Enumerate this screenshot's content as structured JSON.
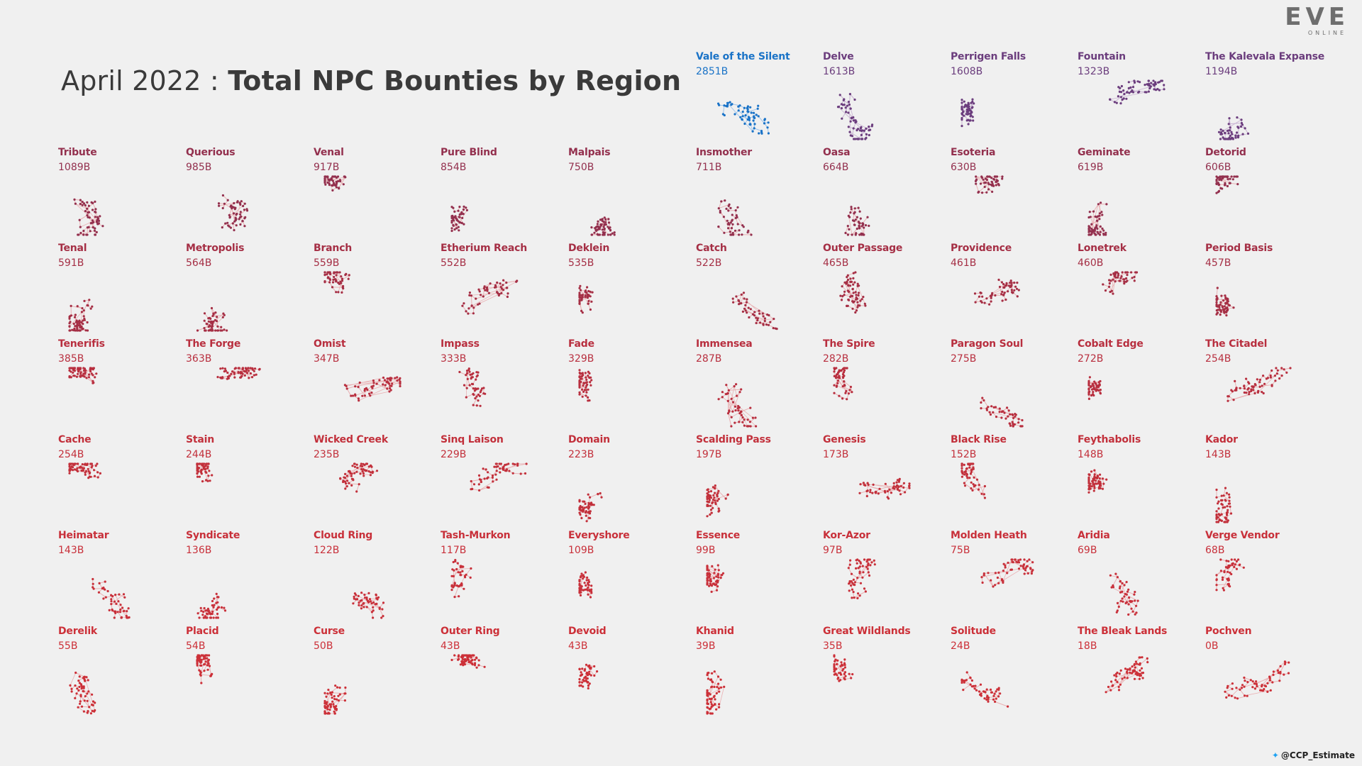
{
  "title": {
    "light": "April 2022 : ",
    "bold": "Total NPC Bounties by Region"
  },
  "logo": {
    "main": "EVE",
    "sub": "ONLINE"
  },
  "credit": "@CCP_Estimate",
  "colors": {
    "highlight": "#1a73c7",
    "purple": "#6b3d7d",
    "maroon": "#93304e",
    "red": "#c8303a",
    "edge": "#e8aaaa"
  },
  "chart_data": {
    "type": "small-multiples",
    "title": "April 2022 : Total NPC Bounties by Region",
    "unit": "B",
    "regions": [
      {
        "name": "Vale of the Silent",
        "value": 2851,
        "label": "2851B",
        "color": "#1a73c7"
      },
      {
        "name": "Delve",
        "value": 1613,
        "label": "1613B",
        "color": "#6b3d7d"
      },
      {
        "name": "Perrigen Falls",
        "value": 1608,
        "label": "1608B",
        "color": "#6b3d7d"
      },
      {
        "name": "Fountain",
        "value": 1323,
        "label": "1323B",
        "color": "#6b3d7d"
      },
      {
        "name": "The Kalevala Expanse",
        "value": 1194,
        "label": "1194B",
        "color": "#6b3d7d"
      },
      {
        "name": "Tribute",
        "value": 1089,
        "label": "1089B",
        "color": "#93304e"
      },
      {
        "name": "Querious",
        "value": 985,
        "label": "985B",
        "color": "#93304e"
      },
      {
        "name": "Venal",
        "value": 917,
        "label": "917B",
        "color": "#93304e"
      },
      {
        "name": "Pure Blind",
        "value": 854,
        "label": "854B",
        "color": "#93304e"
      },
      {
        "name": "Malpais",
        "value": 750,
        "label": "750B",
        "color": "#93304e"
      },
      {
        "name": "Insmother",
        "value": 711,
        "label": "711B",
        "color": "#93304e"
      },
      {
        "name": "Oasa",
        "value": 664,
        "label": "664B",
        "color": "#93304e"
      },
      {
        "name": "Esoteria",
        "value": 630,
        "label": "630B",
        "color": "#93304e"
      },
      {
        "name": "Geminate",
        "value": 619,
        "label": "619B",
        "color": "#93304e"
      },
      {
        "name": "Detorid",
        "value": 606,
        "label": "606B",
        "color": "#93304e"
      },
      {
        "name": "Tenal",
        "value": 591,
        "label": "591B",
        "color": "#a52f45"
      },
      {
        "name": "Metropolis",
        "value": 564,
        "label": "564B",
        "color": "#a52f45"
      },
      {
        "name": "Branch",
        "value": 559,
        "label": "559B",
        "color": "#a52f45"
      },
      {
        "name": "Etherium Reach",
        "value": 552,
        "label": "552B",
        "color": "#a52f45"
      },
      {
        "name": "Deklein",
        "value": 535,
        "label": "535B",
        "color": "#a52f45"
      },
      {
        "name": "Catch",
        "value": 522,
        "label": "522B",
        "color": "#a52f45"
      },
      {
        "name": "Outer Passage",
        "value": 465,
        "label": "465B",
        "color": "#a52f45"
      },
      {
        "name": "Providence",
        "value": 461,
        "label": "461B",
        "color": "#a52f45"
      },
      {
        "name": "Lonetrek",
        "value": 460,
        "label": "460B",
        "color": "#a52f45"
      },
      {
        "name": "Period Basis",
        "value": 457,
        "label": "457B",
        "color": "#a52f45"
      },
      {
        "name": "Tenerifis",
        "value": 385,
        "label": "385B",
        "color": "#b82f3f"
      },
      {
        "name": "The Forge",
        "value": 363,
        "label": "363B",
        "color": "#b82f3f"
      },
      {
        "name": "Omist",
        "value": 347,
        "label": "347B",
        "color": "#b82f3f"
      },
      {
        "name": "Impass",
        "value": 333,
        "label": "333B",
        "color": "#b82f3f"
      },
      {
        "name": "Fade",
        "value": 329,
        "label": "329B",
        "color": "#b82f3f"
      },
      {
        "name": "Immensea",
        "value": 287,
        "label": "287B",
        "color": "#b82f3f"
      },
      {
        "name": "The Spire",
        "value": 282,
        "label": "282B",
        "color": "#b82f3f"
      },
      {
        "name": "Paragon Soul",
        "value": 275,
        "label": "275B",
        "color": "#b82f3f"
      },
      {
        "name": "Cobalt Edge",
        "value": 272,
        "label": "272B",
        "color": "#b82f3f"
      },
      {
        "name": "The Citadel",
        "value": 254,
        "label": "254B",
        "color": "#b82f3f"
      },
      {
        "name": "Cache",
        "value": 254,
        "label": "254B",
        "color": "#c2303b"
      },
      {
        "name": "Stain",
        "value": 244,
        "label": "244B",
        "color": "#c2303b"
      },
      {
        "name": "Wicked Creek",
        "value": 235,
        "label": "235B",
        "color": "#c2303b"
      },
      {
        "name": "Sinq Laison",
        "value": 229,
        "label": "229B",
        "color": "#c2303b"
      },
      {
        "name": "Domain",
        "value": 223,
        "label": "223B",
        "color": "#c2303b"
      },
      {
        "name": "Scalding Pass",
        "value": 197,
        "label": "197B",
        "color": "#c2303b"
      },
      {
        "name": "Genesis",
        "value": 173,
        "label": "173B",
        "color": "#c2303b"
      },
      {
        "name": "Black Rise",
        "value": 152,
        "label": "152B",
        "color": "#c2303b"
      },
      {
        "name": "Feythabolis",
        "value": 148,
        "label": "148B",
        "color": "#c2303b"
      },
      {
        "name": "Kador",
        "value": 143,
        "label": "143B",
        "color": "#c2303b"
      },
      {
        "name": "Heimatar",
        "value": 143,
        "label": "143B",
        "color": "#c8303a"
      },
      {
        "name": "Syndicate",
        "value": 136,
        "label": "136B",
        "color": "#c8303a"
      },
      {
        "name": "Cloud Ring",
        "value": 122,
        "label": "122B",
        "color": "#c8303a"
      },
      {
        "name": "Tash-Murkon",
        "value": 117,
        "label": "117B",
        "color": "#c8303a"
      },
      {
        "name": "Everyshore",
        "value": 109,
        "label": "109B",
        "color": "#c8303a"
      },
      {
        "name": "Essence",
        "value": 99,
        "label": "99B",
        "color": "#c8303a"
      },
      {
        "name": "Kor-Azor",
        "value": 97,
        "label": "97B",
        "color": "#c8303a"
      },
      {
        "name": "Molden Heath",
        "value": 75,
        "label": "75B",
        "color": "#c8303a"
      },
      {
        "name": "Aridia",
        "value": 69,
        "label": "69B",
        "color": "#c8303a"
      },
      {
        "name": "Verge Vendor",
        "value": 68,
        "label": "68B",
        "color": "#c8303a"
      },
      {
        "name": "Derelik",
        "value": 55,
        "label": "55B",
        "color": "#cc3038"
      },
      {
        "name": "Placid",
        "value": 54,
        "label": "54B",
        "color": "#cc3038"
      },
      {
        "name": "Curse",
        "value": 50,
        "label": "50B",
        "color": "#cc3038"
      },
      {
        "name": "Outer Ring",
        "value": 43,
        "label": "43B",
        "color": "#cc3038"
      },
      {
        "name": "Devoid",
        "value": 43,
        "label": "43B",
        "color": "#cc3038"
      },
      {
        "name": "Khanid",
        "value": 39,
        "label": "39B",
        "color": "#cc3038"
      },
      {
        "name": "Great Wildlands",
        "value": 35,
        "label": "35B",
        "color": "#cc3038"
      },
      {
        "name": "Solitude",
        "value": 24,
        "label": "24B",
        "color": "#cc3038"
      },
      {
        "name": "The Bleak Lands",
        "value": 18,
        "label": "18B",
        "color": "#cc3038"
      },
      {
        "name": "Pochven",
        "value": 0,
        "label": "0B",
        "color": "#cc3038"
      }
    ]
  }
}
